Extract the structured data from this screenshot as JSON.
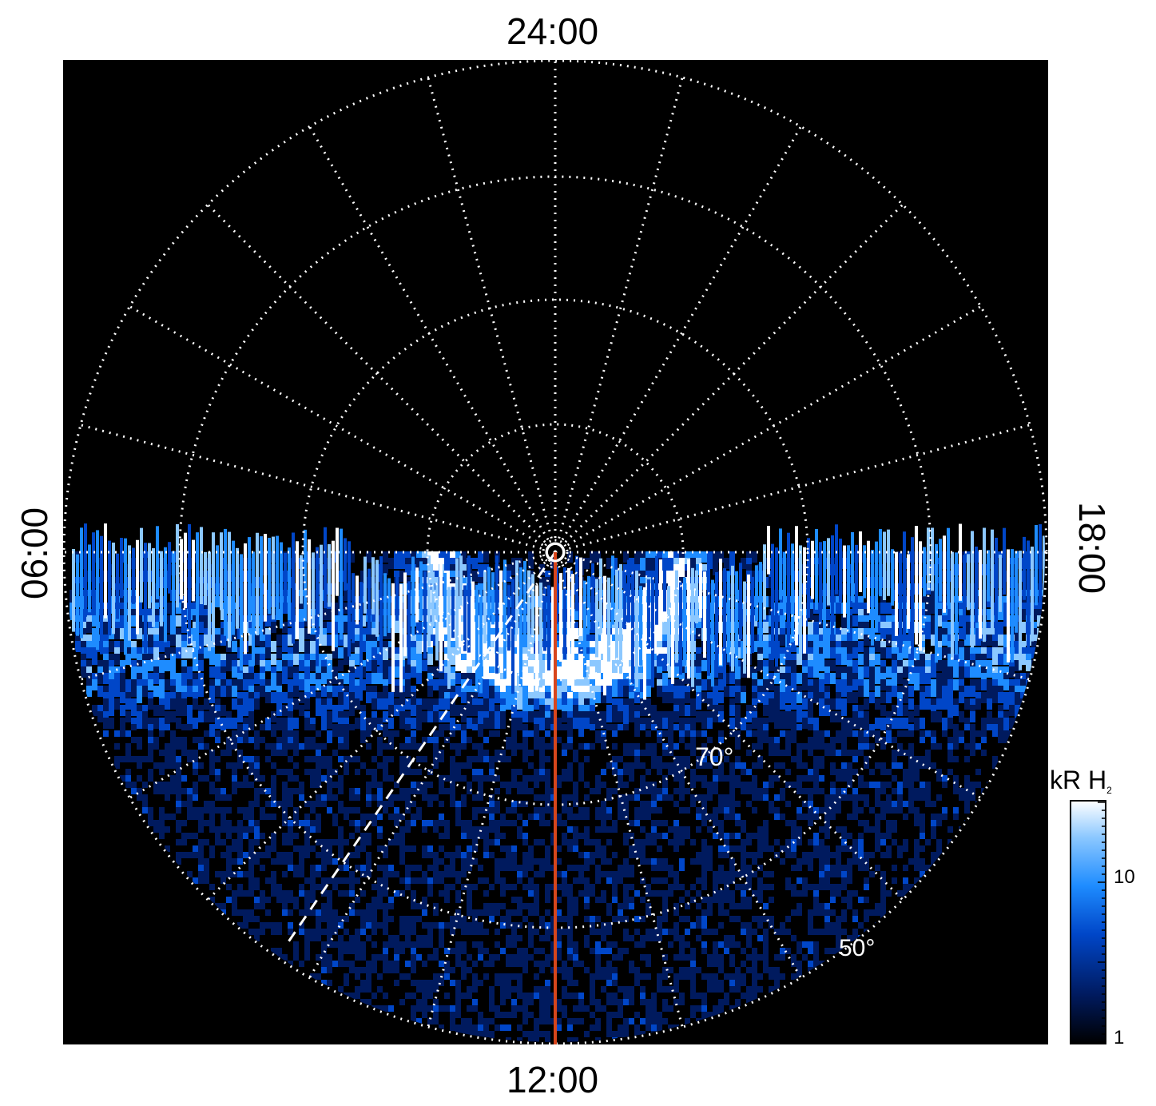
{
  "labels": {
    "top": "24:00",
    "bottom": "12:00",
    "left": "06:00",
    "right": "18:00",
    "lat_70": "70°",
    "lat_50": "50°"
  },
  "colorbar": {
    "title": "kR H",
    "title_sub": "2",
    "ticks": [
      "10",
      "1"
    ]
  },
  "colors": {
    "background": "#000000",
    "grid": "#ffffff",
    "meridian_line": "#d8461c",
    "scale": [
      "#000000",
      "#001a5e",
      "#0046c8",
      "#1e8cff",
      "#8cc8ff",
      "#ffffff"
    ]
  },
  "content": {
    "description_icon": "auroral-polar-projection"
  }
}
